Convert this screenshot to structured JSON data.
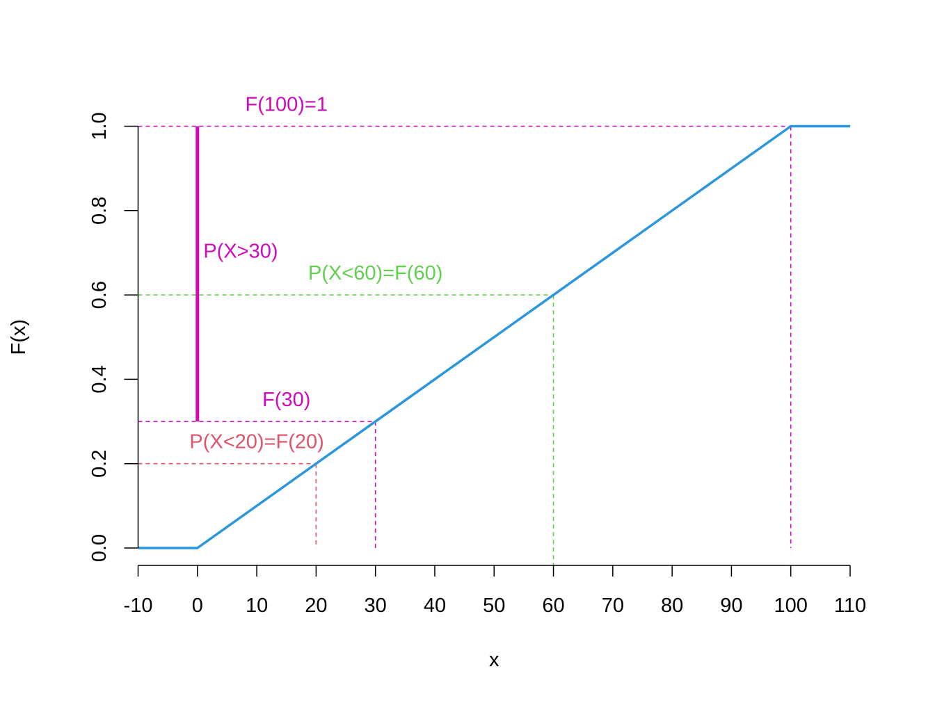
{
  "chart_data": {
    "type": "line",
    "title": "",
    "xlabel": "x",
    "ylabel": "F(x)",
    "xlim": [
      -10,
      110
    ],
    "ylim": [
      0,
      1
    ],
    "x_ticks": [
      -10,
      0,
      10,
      20,
      30,
      40,
      50,
      60,
      70,
      80,
      90,
      100,
      110
    ],
    "y_ticks": [
      0,
      0.2,
      0.4,
      0.6,
      0.8,
      1
    ],
    "x_tick_labels": [
      "-10",
      "0",
      "10",
      "20",
      "30",
      "40",
      "50",
      "60",
      "70",
      "80",
      "90",
      "100",
      "110"
    ],
    "y_tick_labels": [
      "0.0",
      "0.2",
      "0.4",
      "0.6",
      "0.8",
      "1.0"
    ],
    "grid": false,
    "series": [
      {
        "x": [
          -10,
          0,
          100,
          110
        ],
        "y": [
          0,
          0,
          1,
          1
        ],
        "color": "#2b96e0"
      }
    ],
    "reference_lines": [
      {
        "x": 20,
        "y": 0.2,
        "color": "#df536b"
      },
      {
        "x": 30,
        "y": 0.3,
        "color": "#cd0bbc"
      },
      {
        "x": 60,
        "y": 0.6,
        "color": "#61d04f"
      },
      {
        "x": 100,
        "y": 1,
        "color": "#cd0bbc"
      }
    ],
    "highlight_segment": {
      "x": 0,
      "y_from": 0.3,
      "y_to": 1,
      "color": "#cd0bbc"
    },
    "annotations": [
      {
        "text": "F(100)=1",
        "x": 15,
        "y": 1.053,
        "color": "#cd0bbc"
      },
      {
        "text": "P(X>30)",
        "x": 1,
        "y": 0.705,
        "color": "#cd0bbc",
        "align": "left"
      },
      {
        "text": "P(X<60)=F(60)",
        "x": 30,
        "y": 0.653,
        "color": "#61d04f"
      },
      {
        "text": "F(30)",
        "x": 15,
        "y": 0.353,
        "color": "#cd0bbc"
      },
      {
        "text": "P(X<20)=F(20)",
        "x": 10,
        "y": 0.253,
        "color": "#df536b"
      }
    ]
  }
}
